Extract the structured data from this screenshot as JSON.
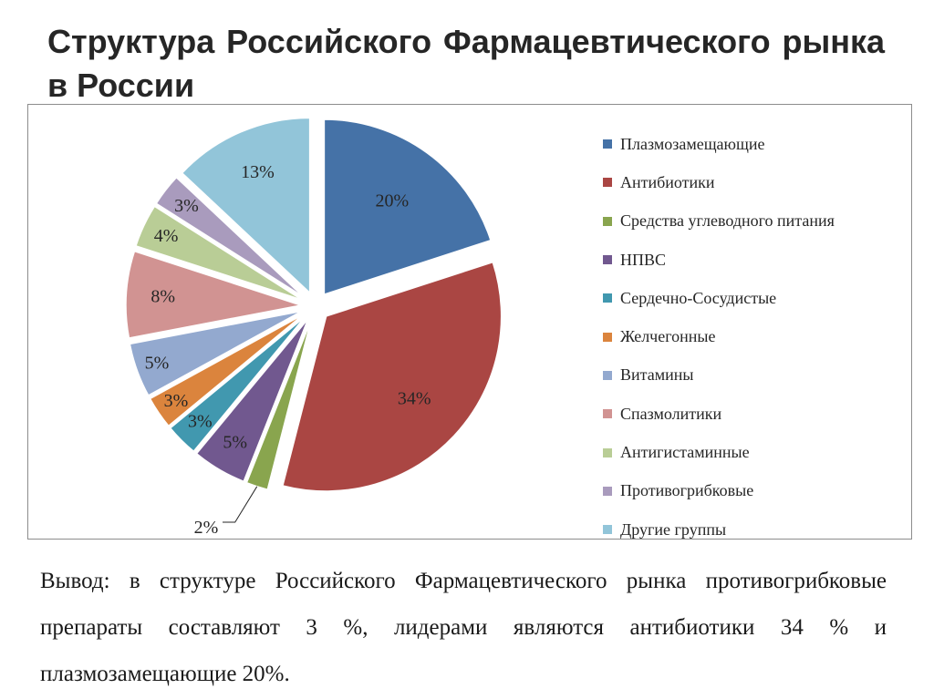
{
  "title": "Структура Российского Фармацевтического рынка в России",
  "chart_data": {
    "type": "pie",
    "title": "",
    "legend_position": "right",
    "categories": [
      "Плазмозамещающие",
      "Антибиотики",
      "Средства углеводного питания",
      "НПВС",
      "Сердечно-Сосудистые",
      "Желчегонные",
      "Витамины",
      "Спазмолитики",
      "Антигистаминные",
      "Противогрибковые",
      "Другие группы"
    ],
    "values": [
      20,
      34,
      2,
      5,
      3,
      3,
      5,
      8,
      4,
      3,
      13
    ],
    "labels": [
      "20%",
      "34%",
      "2%",
      "5%",
      "3%",
      "3%",
      "5%",
      "8%",
      "4%",
      "3%",
      "13%"
    ],
    "colors": [
      "#4572a7",
      "#aa4643",
      "#89a54e",
      "#71588f",
      "#4198af",
      "#db843d",
      "#93a9cf",
      "#d19392",
      "#b9cd96",
      "#a99bbd",
      "#92c5d9"
    ]
  },
  "conclusion": "Вывод: в структуре Российского Фармацевтического рынка противогрибковые препараты составляют 3 %, лидерами являются антибиотики 34 % и плазмозамещающие 20%."
}
